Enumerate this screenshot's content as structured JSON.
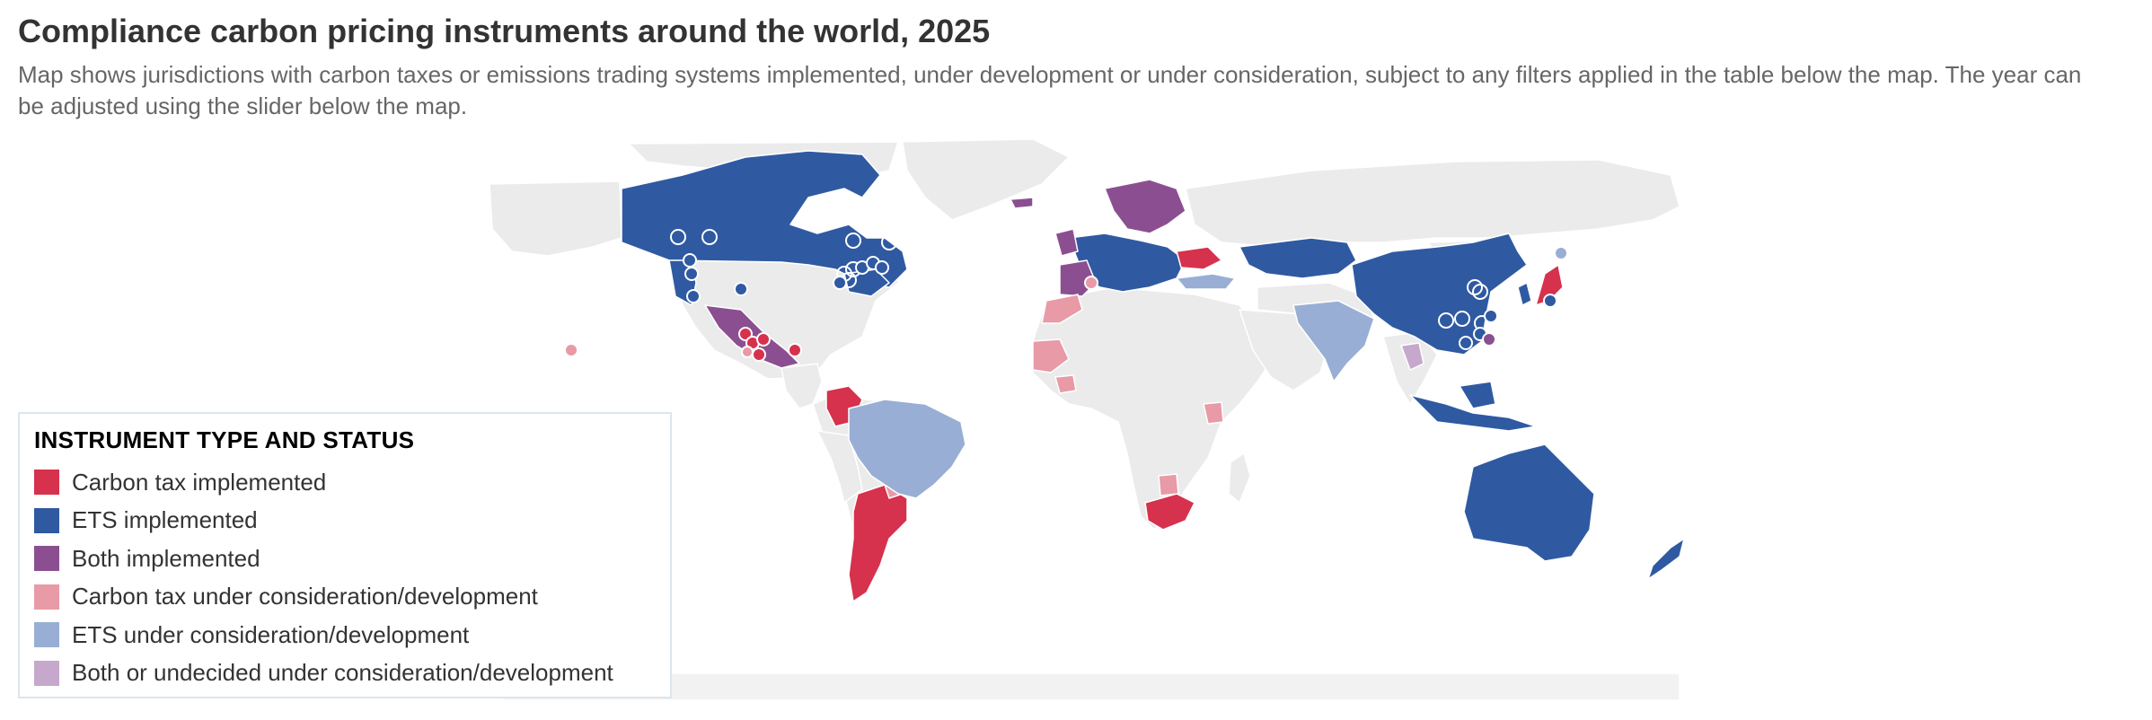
{
  "header": {
    "title": "Compliance carbon pricing instruments around the world, 2025",
    "subtitle": "Map shows jurisdictions with carbon taxes or emissions trading systems implemented, under development or under consideration, subject to any filters applied in the table below the map. The year can be adjusted using the slider below the map."
  },
  "legend": {
    "title": "INSTRUMENT TYPE AND STATUS",
    "items": [
      {
        "label": "Carbon tax implemented",
        "color": "#d6314d"
      },
      {
        "label": "ETS implemented",
        "color": "#2f5aa2"
      },
      {
        "label": "Both implemented",
        "color": "#8b4f91"
      },
      {
        "label": "Carbon tax under consideration/development",
        "color": "#e89aa6"
      },
      {
        "label": "ETS under consideration/development",
        "color": "#98aed4"
      },
      {
        "label": "Both or undecided under consideration/development",
        "color": "#c5a8cc"
      }
    ]
  },
  "map": {
    "base_land_color": "#ebebeb",
    "border_color": "#ffffff",
    "jurisdictions": [
      {
        "name": "Canada",
        "status": "ETS implemented"
      },
      {
        "name": "United States (subnational)",
        "status": "ETS implemented"
      },
      {
        "name": "Mexico",
        "status": "Both implemented"
      },
      {
        "name": "Colombia",
        "status": "Carbon tax implemented"
      },
      {
        "name": "Brazil",
        "status": "ETS under consideration/development"
      },
      {
        "name": "Argentina",
        "status": "Carbon tax implemented"
      },
      {
        "name": "Chile",
        "status": "Carbon tax implemented"
      },
      {
        "name": "Uruguay",
        "status": "Carbon tax under consideration/development"
      },
      {
        "name": "European Union",
        "status": "ETS implemented"
      },
      {
        "name": "Scandinavia",
        "status": "Both implemented"
      },
      {
        "name": "Ukraine",
        "status": "Carbon tax implemented"
      },
      {
        "name": "Turkey",
        "status": "ETS under consideration/development"
      },
      {
        "name": "Morocco",
        "status": "Carbon tax under consideration/development"
      },
      {
        "name": "Senegal",
        "status": "Carbon tax under consideration/development"
      },
      {
        "name": "Kenya",
        "status": "Carbon tax under consideration/development"
      },
      {
        "name": "South Africa",
        "status": "Carbon tax implemented"
      },
      {
        "name": "Kazakhstan",
        "status": "ETS implemented"
      },
      {
        "name": "China",
        "status": "ETS implemented"
      },
      {
        "name": "India",
        "status": "ETS under consideration/development"
      },
      {
        "name": "Japan",
        "status": "Carbon tax implemented"
      },
      {
        "name": "Indonesia",
        "status": "ETS implemented"
      },
      {
        "name": "Australia",
        "status": "ETS implemented"
      },
      {
        "name": "New Zealand",
        "status": "ETS implemented"
      }
    ]
  }
}
